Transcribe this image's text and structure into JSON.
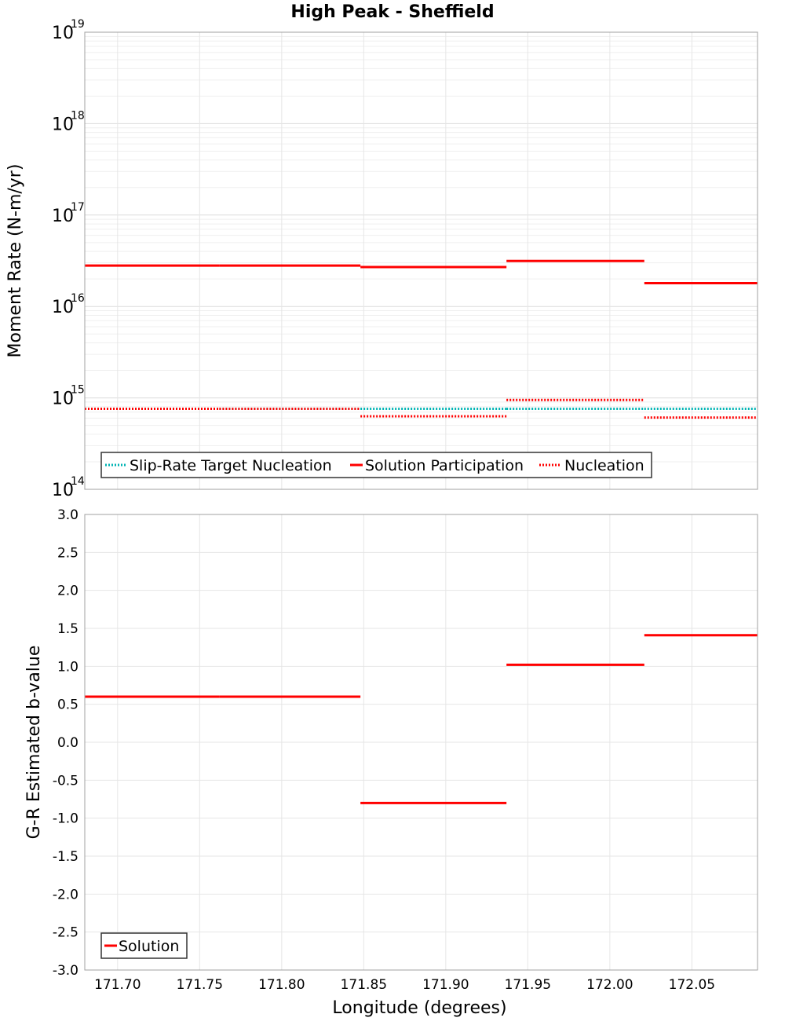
{
  "chart_data": [
    {
      "type": "line",
      "subtype": "step",
      "title": "High Peak - Sheffield",
      "ylabel": "Moment Rate (N-m/yr)",
      "yscale": "log",
      "ylim": [
        100000000000000.0,
        1e+19
      ],
      "xlim": [
        171.68,
        172.09
      ],
      "ytick_labels": [
        {
          "value": 100000000000000.0,
          "base": "10",
          "exp": "14"
        },
        {
          "value": 1000000000000000.0,
          "base": "10",
          "exp": "15"
        },
        {
          "value": 1e+16,
          "base": "10",
          "exp": "16"
        },
        {
          "value": 1e+17,
          "base": "10",
          "exp": "17"
        },
        {
          "value": 1e+18,
          "base": "10",
          "exp": "18"
        },
        {
          "value": 1e+19,
          "base": "10",
          "exp": "19"
        }
      ],
      "grid": true,
      "legend_position": "bottom-left",
      "series": [
        {
          "name": "Slip-Rate Target Nucleation",
          "color": "#00b4b4",
          "style": "dotted",
          "segments": [
            {
              "x": [
                171.68,
                171.762
              ],
              "y": 760000000000000.0
            },
            {
              "x": [
                171.762,
                171.848
              ],
              "y": 760000000000000.0
            },
            {
              "x": [
                171.848,
                171.937
              ],
              "y": 760000000000000.0
            },
            {
              "x": [
                171.937,
                172.021
              ],
              "y": 760000000000000.0
            },
            {
              "x": [
                172.021,
                172.09
              ],
              "y": 760000000000000.0
            }
          ]
        },
        {
          "name": "Solution Participation",
          "color": "#ff0000",
          "style": "solid",
          "segments": [
            {
              "x": [
                171.68,
                171.762
              ],
              "y": 2.8e+16
            },
            {
              "x": [
                171.762,
                171.848
              ],
              "y": 2.8e+16
            },
            {
              "x": [
                171.848,
                171.937
              ],
              "y": 2.7e+16
            },
            {
              "x": [
                171.937,
                172.021
              ],
              "y": 3.15e+16
            },
            {
              "x": [
                172.021,
                172.09
              ],
              "y": 1.8e+16
            }
          ]
        },
        {
          "name": "Nucleation",
          "color": "#ff0000",
          "style": "dotted",
          "segments": [
            {
              "x": [
                171.68,
                171.762
              ],
              "y": 760000000000000.0
            },
            {
              "x": [
                171.762,
                171.848
              ],
              "y": 760000000000000.0
            },
            {
              "x": [
                171.848,
                171.937
              ],
              "y": 630000000000000.0
            },
            {
              "x": [
                171.937,
                172.021
              ],
              "y": 950000000000000.0
            },
            {
              "x": [
                172.021,
                172.09
              ],
              "y": 610000000000000.0
            }
          ]
        }
      ]
    },
    {
      "type": "line",
      "subtype": "step",
      "xlabel": "Longitude (degrees)",
      "ylabel": "G-R Estimated b-value",
      "ylim": [
        -3.0,
        3.0
      ],
      "xlim": [
        171.68,
        172.09
      ],
      "yticks": [
        -3.0,
        -2.5,
        -2.0,
        -1.5,
        -1.0,
        -0.5,
        0.0,
        0.5,
        1.0,
        1.5,
        2.0,
        2.5,
        3.0
      ],
      "ytick_labels": [
        "-3.0",
        "-2.5",
        "-2.0",
        "-1.5",
        "-1.0",
        "-0.5",
        "0.0",
        "0.5",
        "1.0",
        "1.5",
        "2.0",
        "2.5",
        "3.0"
      ],
      "xticks": [
        171.7,
        171.75,
        171.8,
        171.85,
        171.9,
        171.95,
        172.0,
        172.05
      ],
      "xtick_labels": [
        "171.70",
        "171.75",
        "171.80",
        "171.85",
        "171.90",
        "171.95",
        "172.00",
        "172.05"
      ],
      "grid": true,
      "legend_position": "bottom-left",
      "series": [
        {
          "name": "Solution",
          "color": "#ff0000",
          "style": "solid",
          "segments": [
            {
              "x": [
                171.68,
                171.762
              ],
              "y": 0.6
            },
            {
              "x": [
                171.762,
                171.848
              ],
              "y": 0.6
            },
            {
              "x": [
                171.848,
                171.937
              ],
              "y": -0.8
            },
            {
              "x": [
                171.937,
                172.021
              ],
              "y": 1.02
            },
            {
              "x": [
                172.021,
                172.09
              ],
              "y": 1.41
            }
          ]
        }
      ]
    }
  ]
}
